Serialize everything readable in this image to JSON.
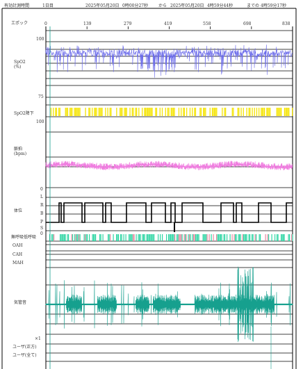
{
  "header": {
    "valid_time_label": "有効計測時間",
    "valid_time_value": "1日目",
    "start_date": "2025年05月20日",
    "start_time": "0時00分27秒",
    "from": "から",
    "end_date": "2025年05月20日",
    "end_time": "4時59分44秒",
    "until": "までの",
    "duration": "4時59分17秒"
  },
  "epoch": {
    "label": "エポック",
    "ticks": [
      "0",
      "139",
      "279",
      "419",
      "558",
      "698",
      "838"
    ]
  },
  "spo2": {
    "label": "SpO2\n(%)",
    "max": "100",
    "min": "75",
    "color": "#6b6bea"
  },
  "spo2_drop": {
    "label": "SpO2降下",
    "color": "#f5e400"
  },
  "pulse": {
    "label": "脈拍\n(bpm)",
    "max": "100",
    "color": "#f07ee0"
  },
  "posture": {
    "label": "体位",
    "levels": [
      "0",
      "L",
      "R",
      "B",
      "P",
      "S",
      "0"
    ]
  },
  "apnea": {
    "label": "無呼吸低呼吸",
    "rows": [
      "OAH",
      "CAH",
      "MAH"
    ],
    "colors": {
      "obstructive": "#2fd6a4",
      "central": "#e48aa0"
    }
  },
  "snore": {
    "label": "気管音",
    "color": "#16a08e"
  },
  "scale": "×1",
  "user_rows": [
    "ユーザ(正方)",
    "ユーザ(全て)"
  ]
}
